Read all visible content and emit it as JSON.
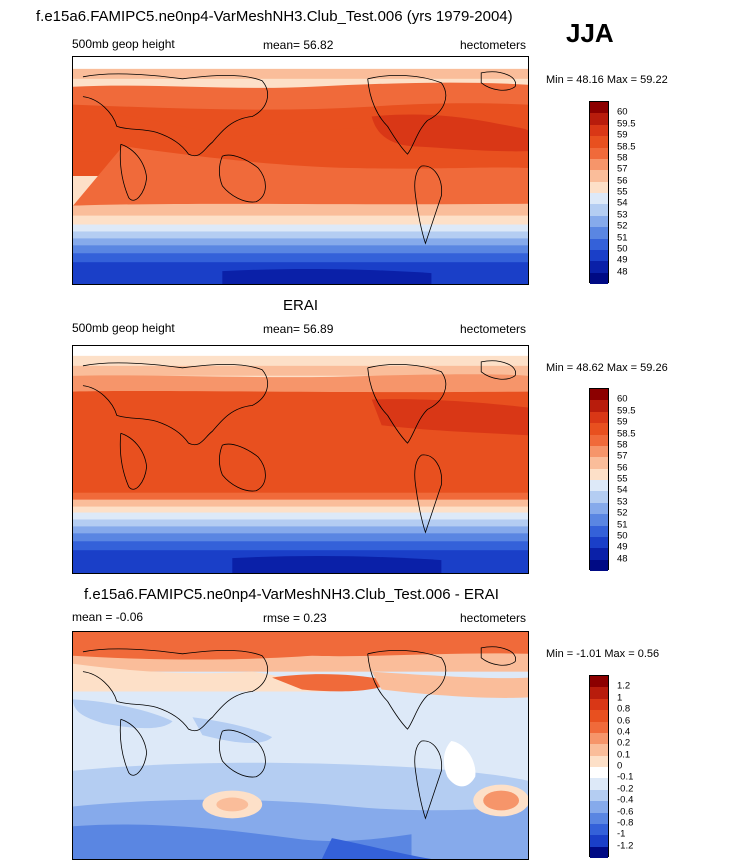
{
  "season": "JJA",
  "panels": [
    {
      "title": "f.e15a6.FAMIPC5.ne0np4-VarMeshNH3.Club_Test.006 (yrs 1979-2004)",
      "left_label": "500mb geop height",
      "center_label": "mean=  56.82",
      "right_label": "hectometers",
      "minmax": "Min =  48.16 Max =  59.22",
      "colorbar_labels": [
        "60",
        "59.5",
        "59",
        "58.5",
        "58",
        "57",
        "56",
        "55",
        "54",
        "53",
        "52",
        "51",
        "50",
        "49",
        "48"
      ]
    },
    {
      "title": "ERAI",
      "left_label": "500mb geop height",
      "center_label": "mean=  56.89",
      "right_label": "hectometers",
      "minmax": "Min =  48.62 Max =  59.26",
      "colorbar_labels": [
        "60",
        "59.5",
        "59",
        "58.5",
        "58",
        "57",
        "56",
        "55",
        "54",
        "53",
        "52",
        "51",
        "50",
        "49",
        "48"
      ]
    },
    {
      "title": "f.e15a6.FAMIPC5.ne0np4-VarMeshNH3.Club_Test.006 - ERAI",
      "left_label": "mean =  -0.06",
      "center_label": "rmse =   0.23",
      "right_label": "hectometers",
      "minmax": "Min =  -1.01 Max =   0.56",
      "colorbar_labels": [
        "1.2",
        "1",
        "0.8",
        "0.6",
        "0.4",
        "0.2",
        "0.1",
        "0",
        "-0.1",
        "-0.2",
        "-0.4",
        "-0.6",
        "-0.8",
        "-1",
        "-1.2"
      ]
    }
  ],
  "colors": {
    "abs_scale": [
      "#8c0000",
      "#b81c0c",
      "#d93716",
      "#e8501f",
      "#f06a3a",
      "#f6956a",
      "#fabd9a",
      "#fde0c8",
      "#dde9f8",
      "#b4cdf2",
      "#86aaeb",
      "#5a86e2",
      "#3461d9",
      "#1a3fc8",
      "#0a20a8",
      "#000a84"
    ],
    "diff_scale": [
      "#8c0000",
      "#b81c0c",
      "#d93716",
      "#e8501f",
      "#f06a3a",
      "#f6956a",
      "#fabd9a",
      "#fde0c8",
      "#ffffff",
      "#dde9f8",
      "#b4cdf2",
      "#86aaeb",
      "#5a86e2",
      "#3461d9",
      "#1a3fc8",
      "#000a84"
    ]
  }
}
